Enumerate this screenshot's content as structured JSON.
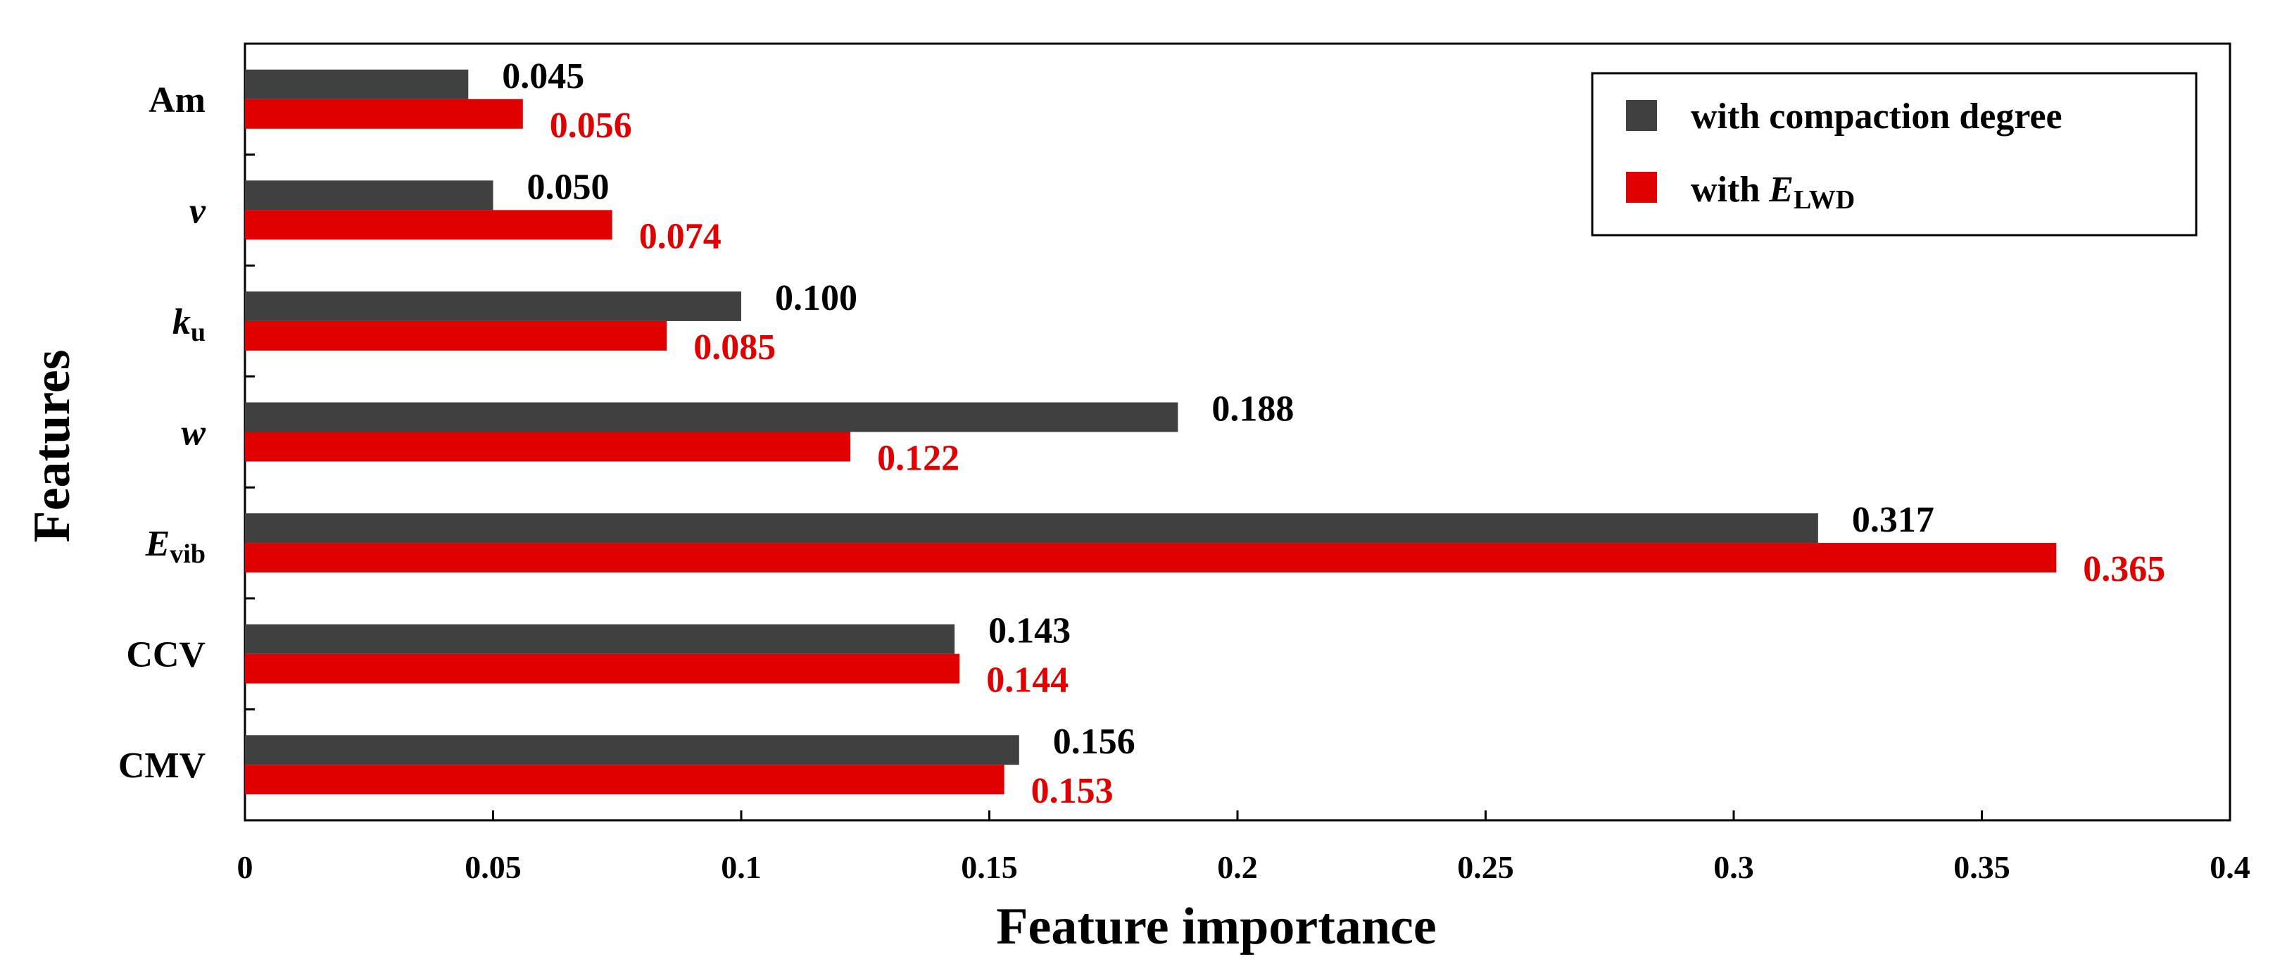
{
  "chart_data": {
    "type": "bar",
    "orientation": "horizontal",
    "categories": [
      {
        "base": "Am",
        "sub": "",
        "italic": false
      },
      {
        "base": "v",
        "sub": "",
        "italic": true
      },
      {
        "base": "k",
        "sub": "u",
        "italic": true
      },
      {
        "base": "w",
        "sub": "",
        "italic": true
      },
      {
        "base": "E",
        "sub": "vib",
        "italic": true
      },
      {
        "base": "CCV",
        "sub": "",
        "italic": false
      },
      {
        "base": "CMV",
        "sub": "",
        "italic": false
      }
    ],
    "series": [
      {
        "name": "with compaction degree",
        "color": "#404040",
        "label_color": "#000000",
        "values": [
          0.045,
          0.05,
          0.1,
          0.188,
          0.317,
          0.143,
          0.156
        ],
        "labels": [
          "0.045",
          "0.050",
          "0.100",
          "0.188",
          "0.317",
          "0.143",
          "0.156"
        ]
      },
      {
        "name_parts": {
          "prefix": "with ",
          "base": "E",
          "sub": "LWD"
        },
        "color": "#e00000",
        "label_color": "#e00000",
        "values": [
          0.056,
          0.074,
          0.085,
          0.122,
          0.365,
          0.144,
          0.153
        ],
        "labels": [
          "0.056",
          "0.074",
          "0.085",
          "0.122",
          "0.365",
          "0.144",
          "0.153"
        ]
      }
    ],
    "xlabel": "Feature importance",
    "ylabel": "Features",
    "xlim": [
      0,
      0.4
    ],
    "xticks": [
      "0",
      "0.05",
      "0.1",
      "0.15",
      "0.2",
      "0.25",
      "0.3",
      "0.35",
      "0.4"
    ],
    "grid": false,
    "legend_position": "top-right"
  }
}
